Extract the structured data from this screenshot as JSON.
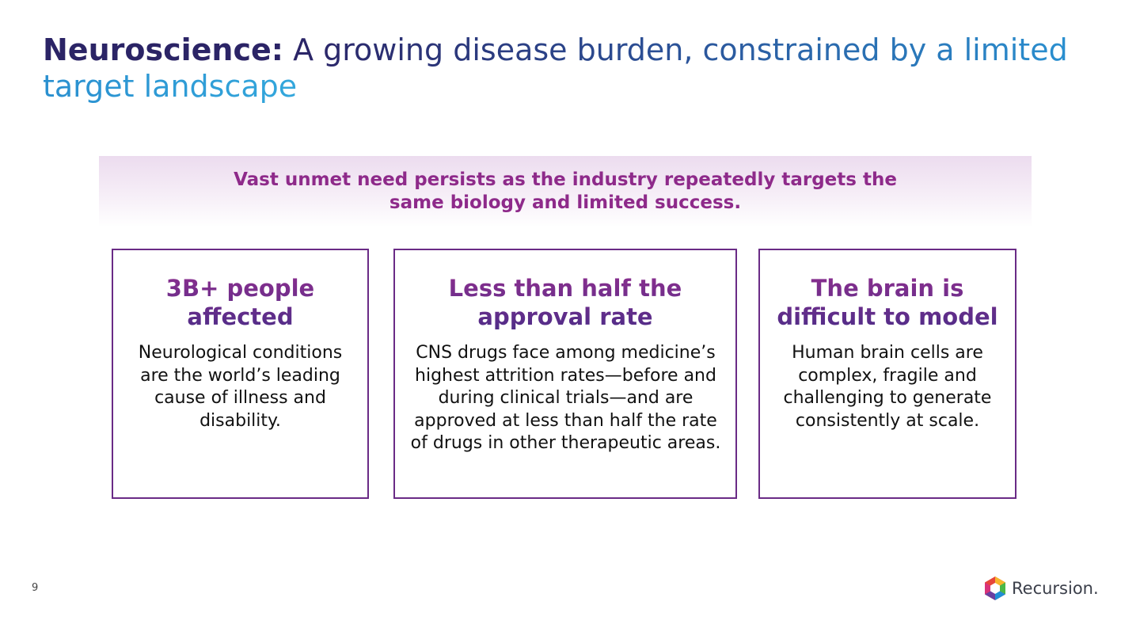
{
  "header": {
    "title_bold": "Neuroscience:",
    "title_rest": "A growing disease burden, constrained by a limited target landscape"
  },
  "banner": {
    "text": "Vast unmet need persists as the industry repeatedly targets the same biology and limited success."
  },
  "cards": [
    {
      "heading": "3B+ people affected",
      "body": "Neurological conditions are the world’s leading cause of illness and disability."
    },
    {
      "heading": "Less than half the approval rate",
      "body": "CNS drugs face among medicine’s highest attrition rates—before and during clinical trials—and are approved at less than half the rate of drugs in other therapeutic areas."
    },
    {
      "heading": "The brain is difficult to model",
      "body": "Human brain cells are complex, fragile and challenging to generate consistently at scale."
    }
  ],
  "footer": {
    "page_number": "9",
    "logo_text": "Recursion."
  }
}
